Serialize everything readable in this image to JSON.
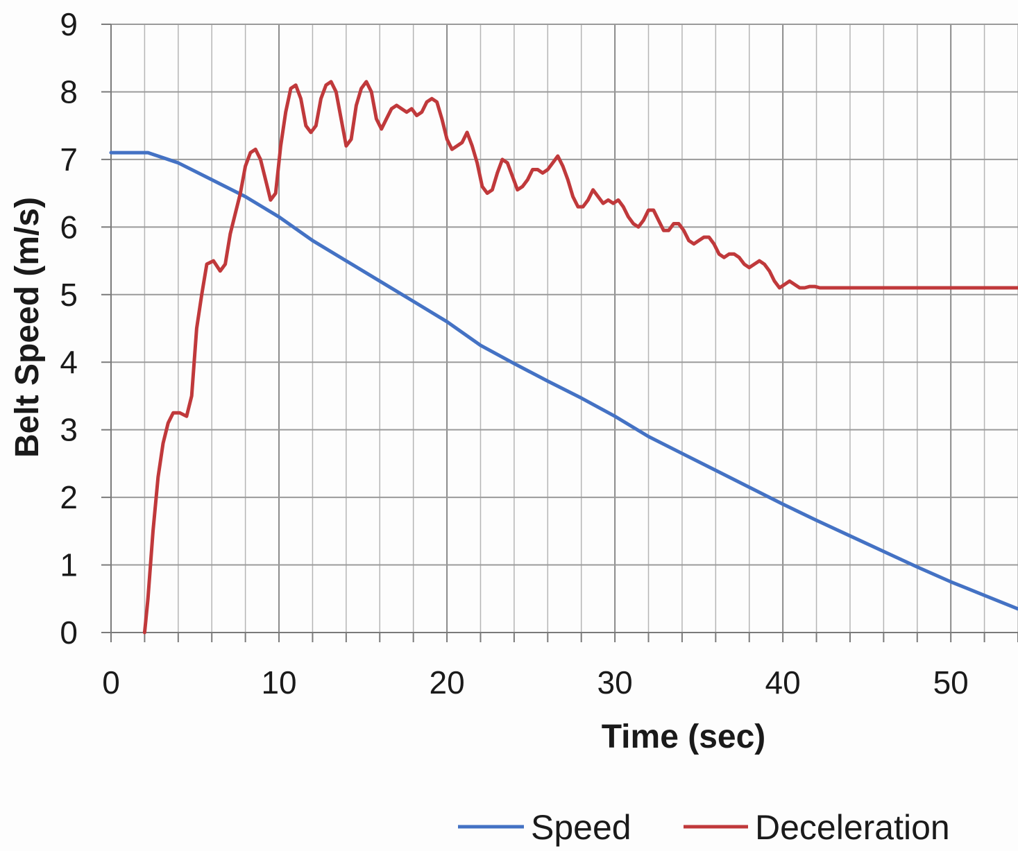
{
  "chart_data": {
    "type": "line",
    "title": "",
    "xlabel": "Time (sec)",
    "ylabel": "Belt Speed (m/s)",
    "xlim": [
      0,
      54
    ],
    "ylim": [
      0,
      9
    ],
    "x_ticks": [
      "0",
      "10",
      "20",
      "30",
      "40",
      "50"
    ],
    "y_ticks": [
      "0",
      "1",
      "2",
      "3",
      "4",
      "5",
      "6",
      "7",
      "8",
      "9"
    ],
    "grid": true,
    "legend_position": "bottom-right",
    "series": [
      {
        "name": "Speed",
        "color": "#4472c4",
        "x": [
          0,
          2.2,
          4,
          6,
          8,
          10,
          12,
          14,
          16,
          18,
          20,
          22,
          24,
          26,
          28,
          30,
          32,
          34,
          36,
          38,
          40,
          42,
          44,
          46,
          48,
          50,
          52,
          54
        ],
        "y": [
          7.1,
          7.1,
          6.95,
          6.7,
          6.45,
          6.15,
          5.8,
          5.5,
          5.2,
          4.9,
          4.6,
          4.25,
          3.98,
          3.72,
          3.47,
          3.2,
          2.9,
          2.65,
          2.4,
          2.15,
          1.9,
          1.66,
          1.43,
          1.2,
          0.97,
          0.75,
          0.55,
          0.35
        ]
      },
      {
        "name": "Deceleration",
        "color": "#c0393b",
        "x": [
          2,
          2.2,
          2.5,
          2.8,
          3.1,
          3.4,
          3.7,
          4.1,
          4.5,
          4.8,
          5.1,
          5.4,
          5.7,
          6.1,
          6.5,
          6.8,
          7.1,
          7.4,
          7.7,
          8.0,
          8.3,
          8.6,
          8.9,
          9.2,
          9.5,
          9.8,
          10.1,
          10.4,
          10.7,
          11.0,
          11.3,
          11.6,
          11.9,
          12.2,
          12.5,
          12.8,
          13.1,
          13.4,
          13.7,
          14.0,
          14.3,
          14.6,
          14.9,
          15.2,
          15.5,
          15.8,
          16.1,
          16.4,
          16.7,
          17.0,
          17.3,
          17.6,
          17.9,
          18.2,
          18.5,
          18.8,
          19.1,
          19.4,
          19.7,
          20.0,
          20.3,
          20.6,
          20.9,
          21.2,
          21.5,
          21.8,
          22.1,
          22.4,
          22.7,
          23.0,
          23.3,
          23.6,
          23.9,
          24.2,
          24.5,
          24.8,
          25.1,
          25.4,
          25.7,
          26.0,
          26.3,
          26.6,
          26.9,
          27.2,
          27.5,
          27.8,
          28.1,
          28.4,
          28.7,
          29.0,
          29.3,
          29.6,
          29.9,
          30.2,
          30.5,
          30.8,
          31.1,
          31.4,
          31.7,
          32.0,
          32.3,
          32.6,
          32.9,
          33.2,
          33.5,
          33.8,
          34.1,
          34.4,
          34.7,
          35.0,
          35.3,
          35.6,
          35.9,
          36.2,
          36.5,
          36.8,
          37.1,
          37.4,
          37.7,
          38.0,
          38.3,
          38.6,
          38.9,
          39.2,
          39.5,
          39.8,
          40.1,
          40.4,
          40.7,
          41.0,
          41.3,
          41.6,
          41.9,
          42.2,
          42.5,
          42.8,
          43.1,
          43.4,
          43.7,
          44.0,
          44.3,
          44.6,
          44.9,
          45.2,
          45.5,
          45.8,
          46.1,
          46.4,
          46.7,
          47.0,
          47.3,
          47.6,
          47.9,
          48.2,
          48.5,
          48.8,
          49.1,
          49.4,
          49.7,
          50.0,
          50.3,
          50.6,
          50.9,
          51.2,
          51.5,
          51.8,
          52.1,
          52.4,
          52.7,
          53.0,
          53.3,
          53.6,
          54.0
        ],
        "y": [
          0,
          0.5,
          1.5,
          2.3,
          2.8,
          3.1,
          3.25,
          3.25,
          3.2,
          3.5,
          4.5,
          5.0,
          5.45,
          5.5,
          5.35,
          5.45,
          5.9,
          6.2,
          6.5,
          6.9,
          7.1,
          7.15,
          7.0,
          6.7,
          6.4,
          6.5,
          7.2,
          7.7,
          8.05,
          8.1,
          7.9,
          7.5,
          7.4,
          7.5,
          7.9,
          8.1,
          8.15,
          8.0,
          7.6,
          7.2,
          7.3,
          7.8,
          8.05,
          8.15,
          8.0,
          7.6,
          7.45,
          7.6,
          7.75,
          7.8,
          7.75,
          7.7,
          7.75,
          7.65,
          7.7,
          7.85,
          7.9,
          7.85,
          7.6,
          7.3,
          7.15,
          7.2,
          7.25,
          7.4,
          7.2,
          6.95,
          6.6,
          6.5,
          6.55,
          6.8,
          7.0,
          6.95,
          6.75,
          6.55,
          6.6,
          6.7,
          6.85,
          6.85,
          6.8,
          6.85,
          6.95,
          7.05,
          6.9,
          6.7,
          6.45,
          6.3,
          6.3,
          6.4,
          6.55,
          6.45,
          6.35,
          6.4,
          6.35,
          6.4,
          6.3,
          6.15,
          6.05,
          6.0,
          6.1,
          6.25,
          6.25,
          6.1,
          5.95,
          5.95,
          6.05,
          6.05,
          5.95,
          5.8,
          5.75,
          5.8,
          5.85,
          5.85,
          5.75,
          5.6,
          5.55,
          5.6,
          5.6,
          5.55,
          5.45,
          5.4,
          5.45,
          5.5,
          5.45,
          5.35,
          5.2,
          5.1,
          5.15,
          5.2,
          5.15,
          5.1,
          5.1,
          5.12,
          5.12,
          5.1,
          5.1,
          5.1,
          5.1,
          5.1,
          5.1,
          5.1,
          5.1,
          5.1,
          5.1,
          5.1,
          5.1,
          5.1,
          5.1,
          5.1,
          5.1,
          5.1,
          5.1,
          5.1,
          5.1,
          5.1,
          5.1,
          5.1,
          5.1,
          5.1,
          5.1,
          5.1,
          5.1,
          5.1,
          5.1,
          5.1,
          5.1,
          5.1,
          5.1,
          5.1,
          5.1,
          5.1,
          5.1,
          5.1,
          5.1
        ]
      }
    ]
  }
}
